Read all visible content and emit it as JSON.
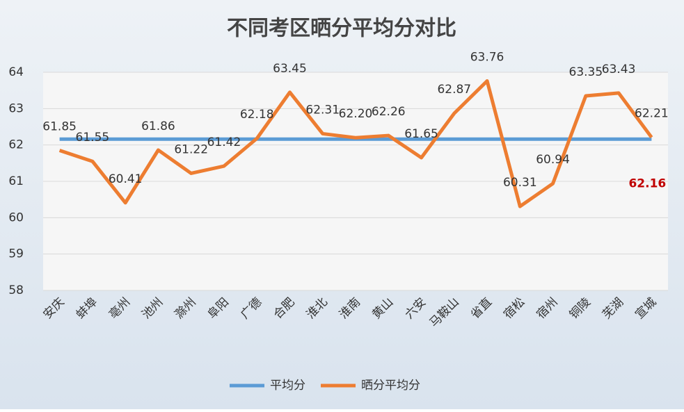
{
  "chart_data": {
    "type": "line",
    "title": "不同考区晒分平均分对比",
    "categories": [
      "安庆",
      "蚌埠",
      "亳州",
      "池州",
      "滁州",
      "阜阳",
      "广德",
      "合肥",
      "淮北",
      "淮南",
      "黄山",
      "六安",
      "马鞍山",
      "省直",
      "宿松",
      "宿州",
      "铜陵",
      "芜湖",
      "宣城"
    ],
    "series": [
      {
        "name": "平均分",
        "color": "#5b9bd5",
        "values": [
          62.16,
          62.16,
          62.16,
          62.16,
          62.16,
          62.16,
          62.16,
          62.16,
          62.16,
          62.16,
          62.16,
          62.16,
          62.16,
          62.16,
          62.16,
          62.16,
          62.16,
          62.16,
          62.16
        ]
      },
      {
        "name": "晒分平均分",
        "color": "#ed7d31",
        "values": [
          61.85,
          61.55,
          60.41,
          61.86,
          61.22,
          61.42,
          62.18,
          63.45,
          62.31,
          62.2,
          62.26,
          61.65,
          62.87,
          63.76,
          60.31,
          60.94,
          63.35,
          63.43,
          62.21
        ],
        "value_labels": [
          "61.85",
          "61.55",
          "60.41",
          "61.86",
          "61.22",
          "61.42",
          "62.18",
          "63.45",
          "62.31",
          "62.20",
          "62.26",
          "61.65",
          "62.87",
          "63.76",
          "60.31",
          "60.94",
          "63.35",
          "63.43",
          "62.21"
        ]
      }
    ],
    "ylim": [
      58,
      64
    ],
    "yticks": [
      58,
      59,
      60,
      61,
      62,
      63,
      64
    ],
    "grid": true,
    "legend": "bottom"
  }
}
